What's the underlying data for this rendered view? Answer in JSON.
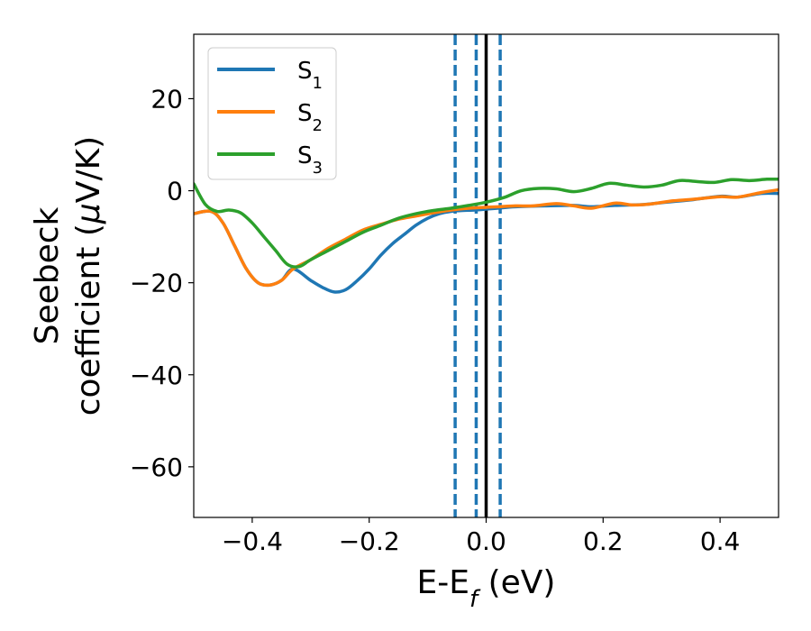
{
  "chart_data": {
    "type": "line",
    "xlabel": {
      "main": "E-E",
      "sub": "f",
      "unit": " (eV)"
    },
    "ylabel": {
      "line1": "Seebeck",
      "line2_main": "coefficient  (",
      "line2_mu": "μ",
      "line2_unit": "V/K)"
    },
    "xlim": [
      -0.5,
      0.5
    ],
    "ylim": [
      -71,
      34
    ],
    "xticks": [
      -0.4,
      -0.2,
      0.0,
      0.2,
      0.4
    ],
    "xtick_labels": [
      "−0.4",
      "−0.2",
      "0.0",
      "0.2",
      "0.4"
    ],
    "yticks": [
      -60,
      -40,
      -20,
      0,
      20
    ],
    "ytick_labels": [
      "−60",
      "−40",
      "−20",
      "0",
      "20"
    ],
    "legend_location": "top-left",
    "vlines": [
      {
        "x": 0.0,
        "style": "solid",
        "color": "#000000"
      },
      {
        "x": -0.053,
        "style": "dashed",
        "color": "#1f77b4"
      },
      {
        "x": -0.017,
        "style": "dashed",
        "color": "#1f77b4"
      },
      {
        "x": 0.024,
        "style": "dashed",
        "color": "#1f77b4"
      }
    ],
    "series": [
      {
        "name": "S",
        "subscript": "1",
        "color": "#1f77b4",
        "x": [
          -0.5,
          -0.47,
          -0.45,
          -0.43,
          -0.41,
          -0.39,
          -0.37,
          -0.35,
          -0.33,
          -0.3,
          -0.28,
          -0.26,
          -0.24,
          -0.22,
          -0.2,
          -0.18,
          -0.16,
          -0.14,
          -0.12,
          -0.1,
          -0.08,
          -0.06,
          -0.04,
          -0.02,
          0.0,
          0.02,
          0.05,
          0.1,
          0.15,
          0.18,
          0.22,
          0.27,
          0.3,
          0.35,
          0.4,
          0.43,
          0.47,
          0.5
        ],
        "y": [
          -5,
          -4.5,
          -7,
          -12,
          -17,
          -20,
          -20.5,
          -19.5,
          -17,
          -19.5,
          -21,
          -22,
          -21.5,
          -19.5,
          -17,
          -14,
          -11.5,
          -9.5,
          -7.5,
          -6,
          -5,
          -4.5,
          -4.3,
          -4.2,
          -4,
          -3.8,
          -3.5,
          -3.3,
          -3.2,
          -3.5,
          -3.2,
          -3,
          -2.6,
          -2,
          -1.2,
          -1.4,
          -0.6,
          -0.6
        ]
      },
      {
        "name": "S",
        "subscript": "2",
        "color": "#ff7f0e",
        "x": [
          -0.5,
          -0.47,
          -0.45,
          -0.43,
          -0.41,
          -0.39,
          -0.37,
          -0.35,
          -0.33,
          -0.3,
          -0.27,
          -0.24,
          -0.21,
          -0.18,
          -0.15,
          -0.12,
          -0.09,
          -0.06,
          -0.03,
          0.0,
          0.02,
          0.05,
          0.08,
          0.12,
          0.15,
          0.18,
          0.22,
          0.25,
          0.28,
          0.32,
          0.36,
          0.4,
          0.43,
          0.47,
          0.5
        ],
        "y": [
          -5,
          -4.5,
          -7,
          -12,
          -17,
          -20,
          -20.5,
          -19.5,
          -17,
          -15,
          -12.5,
          -10.5,
          -8.5,
          -7.3,
          -6.2,
          -5.5,
          -4.8,
          -4.2,
          -3.8,
          -3.6,
          -3.5,
          -3.3,
          -3.3,
          -2.8,
          -3.3,
          -3.8,
          -2.7,
          -3.1,
          -2.9,
          -2.2,
          -1.8,
          -1.3,
          -1.4,
          -0.4,
          0.2
        ]
      },
      {
        "name": "S",
        "subscript": "3",
        "color": "#2ca02c",
        "x": [
          -0.5,
          -0.48,
          -0.46,
          -0.44,
          -0.42,
          -0.4,
          -0.38,
          -0.36,
          -0.34,
          -0.32,
          -0.3,
          -0.27,
          -0.24,
          -0.21,
          -0.18,
          -0.15,
          -0.12,
          -0.09,
          -0.06,
          -0.03,
          0.0,
          0.03,
          0.06,
          0.09,
          0.12,
          0.15,
          0.18,
          0.21,
          0.24,
          0.27,
          0.3,
          0.33,
          0.36,
          0.39,
          0.42,
          0.45,
          0.48,
          0.5
        ],
        "y": [
          1.5,
          -3,
          -4.5,
          -4.2,
          -4.8,
          -7,
          -10,
          -13,
          -16,
          -16.5,
          -15,
          -13,
          -11,
          -9,
          -7.5,
          -6,
          -5,
          -4.3,
          -3.8,
          -3.2,
          -2.5,
          -1.5,
          0,
          0.5,
          0.4,
          -0.2,
          0.5,
          1.6,
          1.2,
          0.8,
          1.2,
          2.2,
          2.0,
          1.8,
          2.4,
          2.2,
          2.5,
          2.5
        ]
      }
    ]
  }
}
